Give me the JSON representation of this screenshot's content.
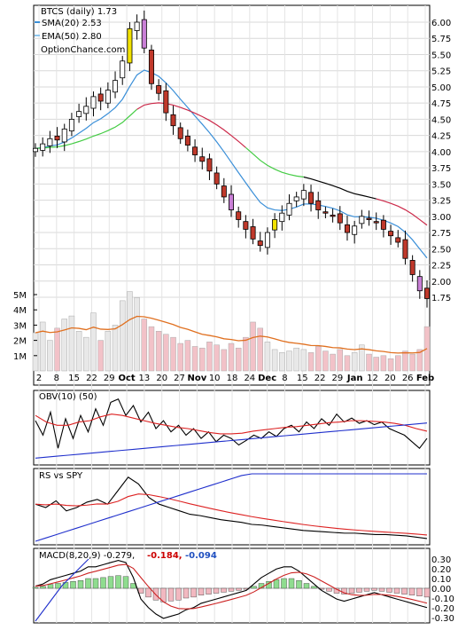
{
  "legend": {
    "title": "BTCS (daily) 1.73",
    "sma_label": "SMA(20) 2.53",
    "ema_label": "EMA(50) 2.80",
    "brand": "OptionChance.com",
    "sma_color": "#3a8fd8",
    "ema_color": "#8ec6ee"
  },
  "obv_panel": {
    "label": "OBV(10) (50)"
  },
  "rs_panel": {
    "label": "RS vs SPY"
  },
  "macd_panel": {
    "label": "MACD(8,20,9) -0.279,",
    "signal_value": "-0.184,",
    "hist_value": "-0.094",
    "signal_color": "#cc0000",
    "hist_color": "#1f4fbf"
  },
  "colors": {
    "up_fill": "#ffffff",
    "down_fill": "#c0392b",
    "yellow_candle": "#f2e200",
    "purple_candle": "#c97fd6",
    "volume_bar": "#f2c2c8",
    "volume_avg": "#e07020",
    "sma": "#3a8fd8",
    "ema_green": "#44cc44",
    "ema_crimson": "#cc2a4a",
    "ema_black": "#000000",
    "obv_line": "#000000",
    "obv_red": "#dd2222",
    "obv_blue": "#1f2fcc"
  },
  "chart_data": [
    {
      "type": "candlestick",
      "title": "BTCS (daily) 1.73",
      "series": [
        {
          "name": "SMA(20)",
          "last": 2.53
        },
        {
          "name": "EMA(50)",
          "last": 2.8
        }
      ],
      "x_tick_labels": [
        "2",
        "8",
        "15",
        "22",
        "29",
        "Oct",
        "13",
        "20",
        "27",
        "Nov",
        "10",
        "18",
        "24",
        "Dec",
        "8",
        "15",
        "22",
        "29",
        "Jan",
        "12",
        "20",
        "26",
        "Feb"
      ],
      "y_tick_labels": [
        "1.75",
        "2.00",
        "2.25",
        "2.50",
        "2.75",
        "3.00",
        "3.25",
        "3.50",
        "3.75",
        "4.00",
        "4.25",
        "4.50",
        "4.75",
        "5.00",
        "5.25",
        "5.50",
        "5.75",
        "6.00"
      ],
      "ylim": [
        1.6,
        6.15
      ],
      "close": [
        4.05,
        4.12,
        4.2,
        4.18,
        4.35,
        4.5,
        4.62,
        4.7,
        4.85,
        4.78,
        4.95,
        5.1,
        5.4,
        5.9,
        6.0,
        5.6,
        5.05,
        4.9,
        4.6,
        4.4,
        4.2,
        4.1,
        3.95,
        3.85,
        3.7,
        3.5,
        3.3,
        3.1,
        2.95,
        2.8,
        2.65,
        2.55,
        2.75,
        2.95,
        3.05,
        3.2,
        3.3,
        3.4,
        3.2,
        3.1,
        3.05,
        3.0,
        2.9,
        2.75,
        2.85,
        3.0,
        2.95,
        2.9,
        2.8,
        2.7,
        2.6,
        2.35,
        2.1,
        1.85,
        1.73
      ],
      "volume_tick_labels": [
        "1M",
        "2M",
        "3M",
        "4M",
        "5M"
      ],
      "volume_millions": [
        2.5,
        3.2,
        2.0,
        2.8,
        3.4,
        3.6,
        2.6,
        2.2,
        3.8,
        2.0,
        2.6,
        3.0,
        4.6,
        5.2,
        4.8,
        3.4,
        2.9,
        2.6,
        2.4,
        2.2,
        1.8,
        2.0,
        1.6,
        1.5,
        1.9,
        1.7,
        1.4,
        1.8,
        1.5,
        2.2,
        3.2,
        2.8,
        1.9,
        1.4,
        1.2,
        1.3,
        1.5,
        1.4,
        1.2,
        1.6,
        1.3,
        1.1,
        1.4,
        1.0,
        1.2,
        1.7,
        1.1,
        0.9,
        1.0,
        0.8,
        1.0,
        1.3,
        1.1,
        1.4,
        2.9
      ]
    },
    {
      "type": "line",
      "title": "OBV(10) (50)",
      "series": [
        {
          "name": "OBV(10)",
          "values": [
            0.62,
            0.4,
            0.75,
            0.2,
            0.65,
            0.35,
            0.7,
            0.45,
            0.8,
            0.55,
            0.9,
            0.95,
            0.7,
            0.85,
            0.6,
            0.75,
            0.5,
            0.62,
            0.45,
            0.55,
            0.4,
            0.5,
            0.35,
            0.45,
            0.3,
            0.4,
            0.35,
            0.25,
            0.32,
            0.4,
            0.35,
            0.45,
            0.38,
            0.5,
            0.55,
            0.45,
            0.6,
            0.5,
            0.65,
            0.55,
            0.72,
            0.6,
            0.66,
            0.58,
            0.62,
            0.56,
            0.6,
            0.5,
            0.45,
            0.4,
            0.3,
            0.2,
            0.35
          ]
        },
        {
          "name": "OBV(50)",
          "values": [
            0.7,
            0.6,
            0.55,
            0.55,
            0.6,
            0.62,
            0.68,
            0.72,
            0.7,
            0.66,
            0.62,
            0.58,
            0.55,
            0.52,
            0.5,
            0.47,
            0.44,
            0.42,
            0.42,
            0.43,
            0.46,
            0.48,
            0.5,
            0.52,
            0.53,
            0.55,
            0.57,
            0.59,
            0.6,
            0.62,
            0.62,
            0.61,
            0.6,
            0.58,
            0.55,
            0.5,
            0.46
          ]
        }
      ]
    },
    {
      "type": "line",
      "title": "RS vs SPY",
      "series": [
        {
          "name": "RS vs SPY",
          "values": [
            0.55,
            0.5,
            0.6,
            0.45,
            0.5,
            0.58,
            0.62,
            0.55,
            0.75,
            0.95,
            0.85,
            0.65,
            0.55,
            0.5,
            0.45,
            0.4,
            0.38,
            0.35,
            0.32,
            0.3,
            0.28,
            0.25,
            0.24,
            0.22,
            0.2,
            0.18,
            0.16,
            0.15,
            0.14,
            0.13,
            0.12,
            0.12,
            0.11,
            0.1,
            0.1,
            0.09,
            0.08,
            0.06,
            0.04
          ]
        }
      ]
    },
    {
      "type": "bar",
      "title": "MACD(8,20,9)",
      "series": [
        {
          "name": "MACD",
          "last": -0.279
        },
        {
          "name": "Signal",
          "last": -0.184
        },
        {
          "name": "Histogram",
          "last": -0.094
        }
      ],
      "y_tick_labels": [
        "0.30",
        "0.20",
        "0.10",
        "0.00",
        "-0.10",
        "-0.20",
        "-0.30"
      ],
      "ylim": [
        -0.34,
        0.34
      ],
      "histogram": [
        0.01,
        0.02,
        0.04,
        0.05,
        0.06,
        0.07,
        0.08,
        0.1,
        0.1,
        0.11,
        0.12,
        0.13,
        0.12,
        0.05,
        -0.05,
        -0.09,
        -0.12,
        -0.14,
        -0.13,
        -0.12,
        -0.1,
        -0.09,
        -0.07,
        -0.06,
        -0.05,
        -0.04,
        -0.03,
        -0.02,
        -0.01,
        0.02,
        0.05,
        0.07,
        0.09,
        0.1,
        0.1,
        0.08,
        0.05,
        0.02,
        -0.01,
        -0.03,
        -0.05,
        -0.06,
        -0.05,
        -0.04,
        -0.03,
        -0.02,
        -0.03,
        -0.04,
        -0.05,
        -0.06,
        -0.07,
        -0.08,
        -0.09
      ]
    }
  ]
}
